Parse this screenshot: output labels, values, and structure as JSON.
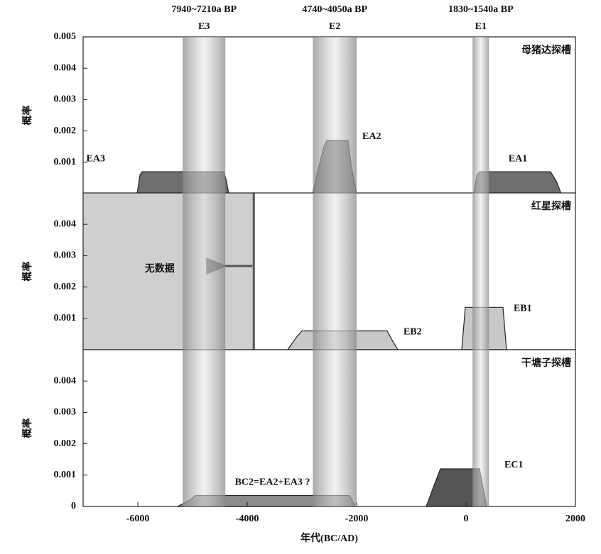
{
  "chart_data": [
    {
      "type": "area",
      "title": "母猪达探槽",
      "ylabel": "概率",
      "xlim": [
        -7000,
        2000
      ],
      "ylim": [
        0,
        0.005
      ],
      "yticks": [
        0.001,
        0.002,
        0.003,
        0.004,
        0.005
      ],
      "bands": [
        {
          "name": "E3",
          "label": "7940~7210a BP",
          "range": [
            -5180,
            -4400
          ]
        },
        {
          "name": "E2",
          "label": "4740~4050a BP",
          "range": [
            -2800,
            -2000
          ]
        },
        {
          "name": "E1",
          "label": "1830~1540a BP",
          "range": [
            120,
            420
          ]
        }
      ],
      "series": [
        {
          "name": "EA3",
          "color": "#6e6e6e",
          "x": [
            -6013,
            -5960,
            -5922,
            -4428,
            -4380,
            -4338
          ],
          "values": [
            0,
            0.0006,
            0.0007,
            0.0007,
            0.0004,
            0
          ]
        },
        {
          "name": "EA2",
          "color": "#6e6e6e",
          "x": [
            -2805,
            -2700,
            -2600,
            -2545,
            -2156,
            -2100,
            -2000
          ],
          "values": [
            0,
            0.0008,
            0.0015,
            0.0017,
            0.0017,
            0.0009,
            0
          ]
        },
        {
          "name": "EA1",
          "color": "#6e6e6e",
          "x": [
            143,
            200,
            247,
            1545,
            1650,
            1740
          ],
          "values": [
            0,
            0.0006,
            0.0007,
            0.0007,
            0.0004,
            0
          ]
        }
      ]
    },
    {
      "type": "area",
      "title": "红星探槽",
      "ylabel": "概率",
      "xlim": [
        -7000,
        2000
      ],
      "ylim": [
        0,
        0.005
      ],
      "yticks": [
        0.001,
        0.002,
        0.003,
        0.004
      ],
      "no_data": {
        "label": "无数据",
        "range": [
          -7000,
          -3880
        ]
      },
      "series": [
        {
          "name": "EB2",
          "color": "#c8c8c8",
          "x": [
            -3260,
            -3100,
            -3000,
            -1442,
            -1350,
            -1247
          ],
          "values": [
            0,
            0.0004,
            0.0006,
            0.0006,
            0.0003,
            0
          ]
        },
        {
          "name": "EB1",
          "color": "#c8c8c8",
          "x": [
            -78,
            -13,
            675,
            740
          ],
          "values": [
            0,
            0.00135,
            0.00135,
            0
          ]
        }
      ]
    },
    {
      "type": "area",
      "title": "干塘子探槽",
      "ylabel": "概率",
      "xlabel": "年代(BC/AD)",
      "xlim": [
        -7000,
        2000
      ],
      "ylim": [
        0,
        0.005
      ],
      "yticks": [
        0,
        0.001,
        0.002,
        0.003,
        0.004
      ],
      "xticks": [
        -6000,
        -4000,
        -2000,
        0,
        2000
      ],
      "series": [
        {
          "name": "BC2=EA2+EA3 ?",
          "color": "#8c8c8c",
          "x": [
            -5273,
            -5050,
            -4948,
            -2130,
            -2026
          ],
          "values": [
            0,
            0.0002,
            0.00035,
            0.00035,
            0
          ]
        },
        {
          "name": "EC1",
          "color": "#555555",
          "x": [
            -727,
            -600,
            -468,
            247,
            377
          ],
          "values": [
            0,
            0.0006,
            0.0012,
            0.0012,
            0
          ]
        }
      ]
    }
  ]
}
